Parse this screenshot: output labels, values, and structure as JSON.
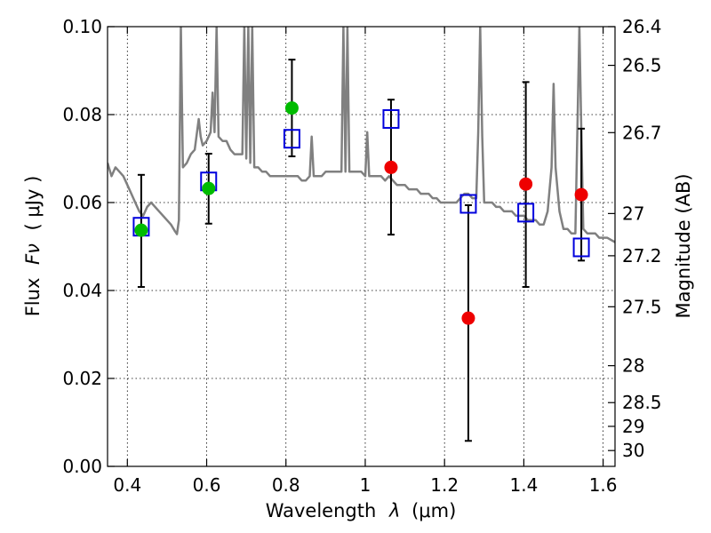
{
  "chart_data": {
    "type": "scatter",
    "xlabel_text": "Wavelength",
    "xlabel_symbol": "λ",
    "xlabel_unit": "(μm)",
    "ylabel_text": "Flux",
    "ylabel_symbol": "Fν",
    "ylabel_unit": "( μJy )",
    "y2label": "Magnitude (AB)",
    "xlim": [
      0.35,
      1.63
    ],
    "ylim": [
      0.0,
      0.1
    ],
    "grid": true,
    "x_ticks": [
      {
        "value": 0.4,
        "label": "0.4"
      },
      {
        "value": 0.6,
        "label": "0.6"
      },
      {
        "value": 0.8,
        "label": "0.8"
      },
      {
        "value": 1.0,
        "label": "1"
      },
      {
        "value": 1.2,
        "label": "1.2"
      },
      {
        "value": 1.4,
        "label": "1.4"
      },
      {
        "value": 1.6,
        "label": "1.6"
      }
    ],
    "y_ticks": [
      {
        "value": 0.0,
        "label": "0.00"
      },
      {
        "value": 0.02,
        "label": "0.02"
      },
      {
        "value": 0.04,
        "label": "0.04"
      },
      {
        "value": 0.06,
        "label": "0.06"
      },
      {
        "value": 0.08,
        "label": "0.08"
      },
      {
        "value": 0.1,
        "label": "0.10"
      }
    ],
    "y2_ticks": [
      {
        "flux": 0.1,
        "label": "26.4"
      },
      {
        "flux": 0.0912,
        "label": "26.5"
      },
      {
        "flux": 0.0759,
        "label": "26.7"
      },
      {
        "flux": 0.0575,
        "label": "27"
      },
      {
        "flux": 0.0479,
        "label": "27.2"
      },
      {
        "flux": 0.0363,
        "label": "27.5"
      },
      {
        "flux": 0.0229,
        "label": "28"
      },
      {
        "flux": 0.0145,
        "label": "28.5"
      },
      {
        "flux": 0.0091,
        "label": "29"
      },
      {
        "flux": 0.0036,
        "label": "30"
      }
    ],
    "series": [
      {
        "kind": "spectrum",
        "color": "#808080",
        "points": [
          [
            0.35,
            0.069
          ],
          [
            0.36,
            0.066
          ],
          [
            0.37,
            0.068
          ],
          [
            0.38,
            0.067
          ],
          [
            0.39,
            0.066
          ],
          [
            0.4,
            0.064
          ],
          [
            0.41,
            0.062
          ],
          [
            0.42,
            0.06
          ],
          [
            0.43,
            0.058
          ],
          [
            0.44,
            0.057
          ],
          [
            0.45,
            0.059
          ],
          [
            0.46,
            0.06
          ],
          [
            0.47,
            0.059
          ],
          [
            0.48,
            0.058
          ],
          [
            0.49,
            0.057
          ],
          [
            0.5,
            0.056
          ],
          [
            0.51,
            0.055
          ],
          [
            0.52,
            0.0535
          ],
          [
            0.525,
            0.0528
          ],
          [
            0.53,
            0.056
          ],
          [
            0.535,
            0.1
          ],
          [
            0.54,
            0.068
          ],
          [
            0.55,
            0.069
          ],
          [
            0.56,
            0.071
          ],
          [
            0.57,
            0.072
          ],
          [
            0.58,
            0.079
          ],
          [
            0.585,
            0.075
          ],
          [
            0.59,
            0.073
          ],
          [
            0.6,
            0.074
          ],
          [
            0.61,
            0.076
          ],
          [
            0.615,
            0.085
          ],
          [
            0.62,
            0.076
          ],
          [
            0.625,
            0.1
          ],
          [
            0.63,
            0.075
          ],
          [
            0.64,
            0.074
          ],
          [
            0.65,
            0.074
          ],
          [
            0.66,
            0.072
          ],
          [
            0.67,
            0.071
          ],
          [
            0.68,
            0.071
          ],
          [
            0.69,
            0.071
          ],
          [
            0.695,
            0.1
          ],
          [
            0.7,
            0.07
          ],
          [
            0.705,
            0.1
          ],
          [
            0.71,
            0.069
          ],
          [
            0.715,
            0.1
          ],
          [
            0.72,
            0.068
          ],
          [
            0.73,
            0.068
          ],
          [
            0.74,
            0.067
          ],
          [
            0.75,
            0.067
          ],
          [
            0.76,
            0.066
          ],
          [
            0.77,
            0.066
          ],
          [
            0.78,
            0.066
          ],
          [
            0.79,
            0.066
          ],
          [
            0.8,
            0.066
          ],
          [
            0.81,
            0.066
          ],
          [
            0.82,
            0.066
          ],
          [
            0.83,
            0.066
          ],
          [
            0.84,
            0.065
          ],
          [
            0.85,
            0.065
          ],
          [
            0.86,
            0.066
          ],
          [
            0.865,
            0.075
          ],
          [
            0.87,
            0.066
          ],
          [
            0.88,
            0.066
          ],
          [
            0.89,
            0.066
          ],
          [
            0.9,
            0.067
          ],
          [
            0.91,
            0.067
          ],
          [
            0.92,
            0.067
          ],
          [
            0.93,
            0.067
          ],
          [
            0.94,
            0.067
          ],
          [
            0.945,
            0.1
          ],
          [
            0.95,
            0.067
          ],
          [
            0.955,
            0.1
          ],
          [
            0.96,
            0.067
          ],
          [
            0.97,
            0.067
          ],
          [
            0.98,
            0.067
          ],
          [
            0.99,
            0.067
          ],
          [
            1.0,
            0.066
          ],
          [
            1.005,
            0.076
          ],
          [
            1.01,
            0.066
          ],
          [
            1.02,
            0.066
          ],
          [
            1.03,
            0.066
          ],
          [
            1.04,
            0.066
          ],
          [
            1.05,
            0.065
          ],
          [
            1.06,
            0.066
          ],
          [
            1.07,
            0.065
          ],
          [
            1.08,
            0.064
          ],
          [
            1.09,
            0.064
          ],
          [
            1.1,
            0.064
          ],
          [
            1.11,
            0.063
          ],
          [
            1.12,
            0.063
          ],
          [
            1.13,
            0.063
          ],
          [
            1.14,
            0.062
          ],
          [
            1.15,
            0.062
          ],
          [
            1.16,
            0.062
          ],
          [
            1.17,
            0.061
          ],
          [
            1.18,
            0.061
          ],
          [
            1.19,
            0.06
          ],
          [
            1.2,
            0.06
          ],
          [
            1.21,
            0.06
          ],
          [
            1.22,
            0.06
          ],
          [
            1.23,
            0.06
          ],
          [
            1.24,
            0.061
          ],
          [
            1.25,
            0.062
          ],
          [
            1.26,
            0.062
          ],
          [
            1.27,
            0.061
          ],
          [
            1.28,
            0.061
          ],
          [
            1.285,
            0.076
          ],
          [
            1.29,
            0.1
          ],
          [
            1.295,
            0.075
          ],
          [
            1.3,
            0.06
          ],
          [
            1.31,
            0.06
          ],
          [
            1.32,
            0.06
          ],
          [
            1.33,
            0.059
          ],
          [
            1.34,
            0.059
          ],
          [
            1.35,
            0.058
          ],
          [
            1.36,
            0.058
          ],
          [
            1.37,
            0.058
          ],
          [
            1.38,
            0.057
          ],
          [
            1.39,
            0.057
          ],
          [
            1.4,
            0.057
          ],
          [
            1.41,
            0.056
          ],
          [
            1.42,
            0.056
          ],
          [
            1.43,
            0.056
          ],
          [
            1.44,
            0.055
          ],
          [
            1.45,
            0.055
          ],
          [
            1.46,
            0.058
          ],
          [
            1.47,
            0.068
          ],
          [
            1.475,
            0.087
          ],
          [
            1.48,
            0.068
          ],
          [
            1.49,
            0.058
          ],
          [
            1.5,
            0.054
          ],
          [
            1.51,
            0.054
          ],
          [
            1.52,
            0.053
          ],
          [
            1.53,
            0.053
          ],
          [
            1.535,
            0.076
          ],
          [
            1.54,
            0.1
          ],
          [
            1.545,
            0.076
          ],
          [
            1.55,
            0.054
          ],
          [
            1.56,
            0.053
          ],
          [
            1.57,
            0.053
          ],
          [
            1.58,
            0.053
          ],
          [
            1.59,
            0.052
          ],
          [
            1.6,
            0.052
          ],
          [
            1.61,
            0.052
          ],
          [
            1.62,
            0.0515
          ],
          [
            1.63,
            0.051
          ]
        ]
      },
      {
        "kind": "model-boxes",
        "color": "#0000dd",
        "points": [
          {
            "x": 0.435,
            "y": 0.0545
          },
          {
            "x": 0.605,
            "y": 0.0648
          },
          {
            "x": 0.815,
            "y": 0.0745
          },
          {
            "x": 1.065,
            "y": 0.079
          },
          {
            "x": 1.26,
            "y": 0.0597
          },
          {
            "x": 1.405,
            "y": 0.0577
          },
          {
            "x": 1.545,
            "y": 0.0498
          }
        ]
      },
      {
        "kind": "measured-points",
        "points": [
          {
            "x": 0.435,
            "y": 0.0537,
            "err_low": 0.0408,
            "err_high": 0.0663,
            "color": "#00bb00"
          },
          {
            "x": 0.605,
            "y": 0.0632,
            "err_low": 0.0552,
            "err_high": 0.0711,
            "color": "#00bb00"
          },
          {
            "x": 0.815,
            "y": 0.0815,
            "err_low": 0.0705,
            "err_high": 0.0925,
            "color": "#00bb00"
          },
          {
            "x": 1.065,
            "y": 0.068,
            "err_low": 0.0527,
            "err_high": 0.0834,
            "color": "#ee0000"
          },
          {
            "x": 1.26,
            "y": 0.0337,
            "err_low": 0.0058,
            "err_high": 0.0594,
            "color": "#ee0000"
          },
          {
            "x": 1.405,
            "y": 0.0642,
            "err_low": 0.0408,
            "err_high": 0.0874,
            "color": "#ee0000"
          },
          {
            "x": 1.545,
            "y": 0.0618,
            "err_low": 0.0468,
            "err_high": 0.0768,
            "color": "#ee0000"
          }
        ]
      }
    ]
  }
}
